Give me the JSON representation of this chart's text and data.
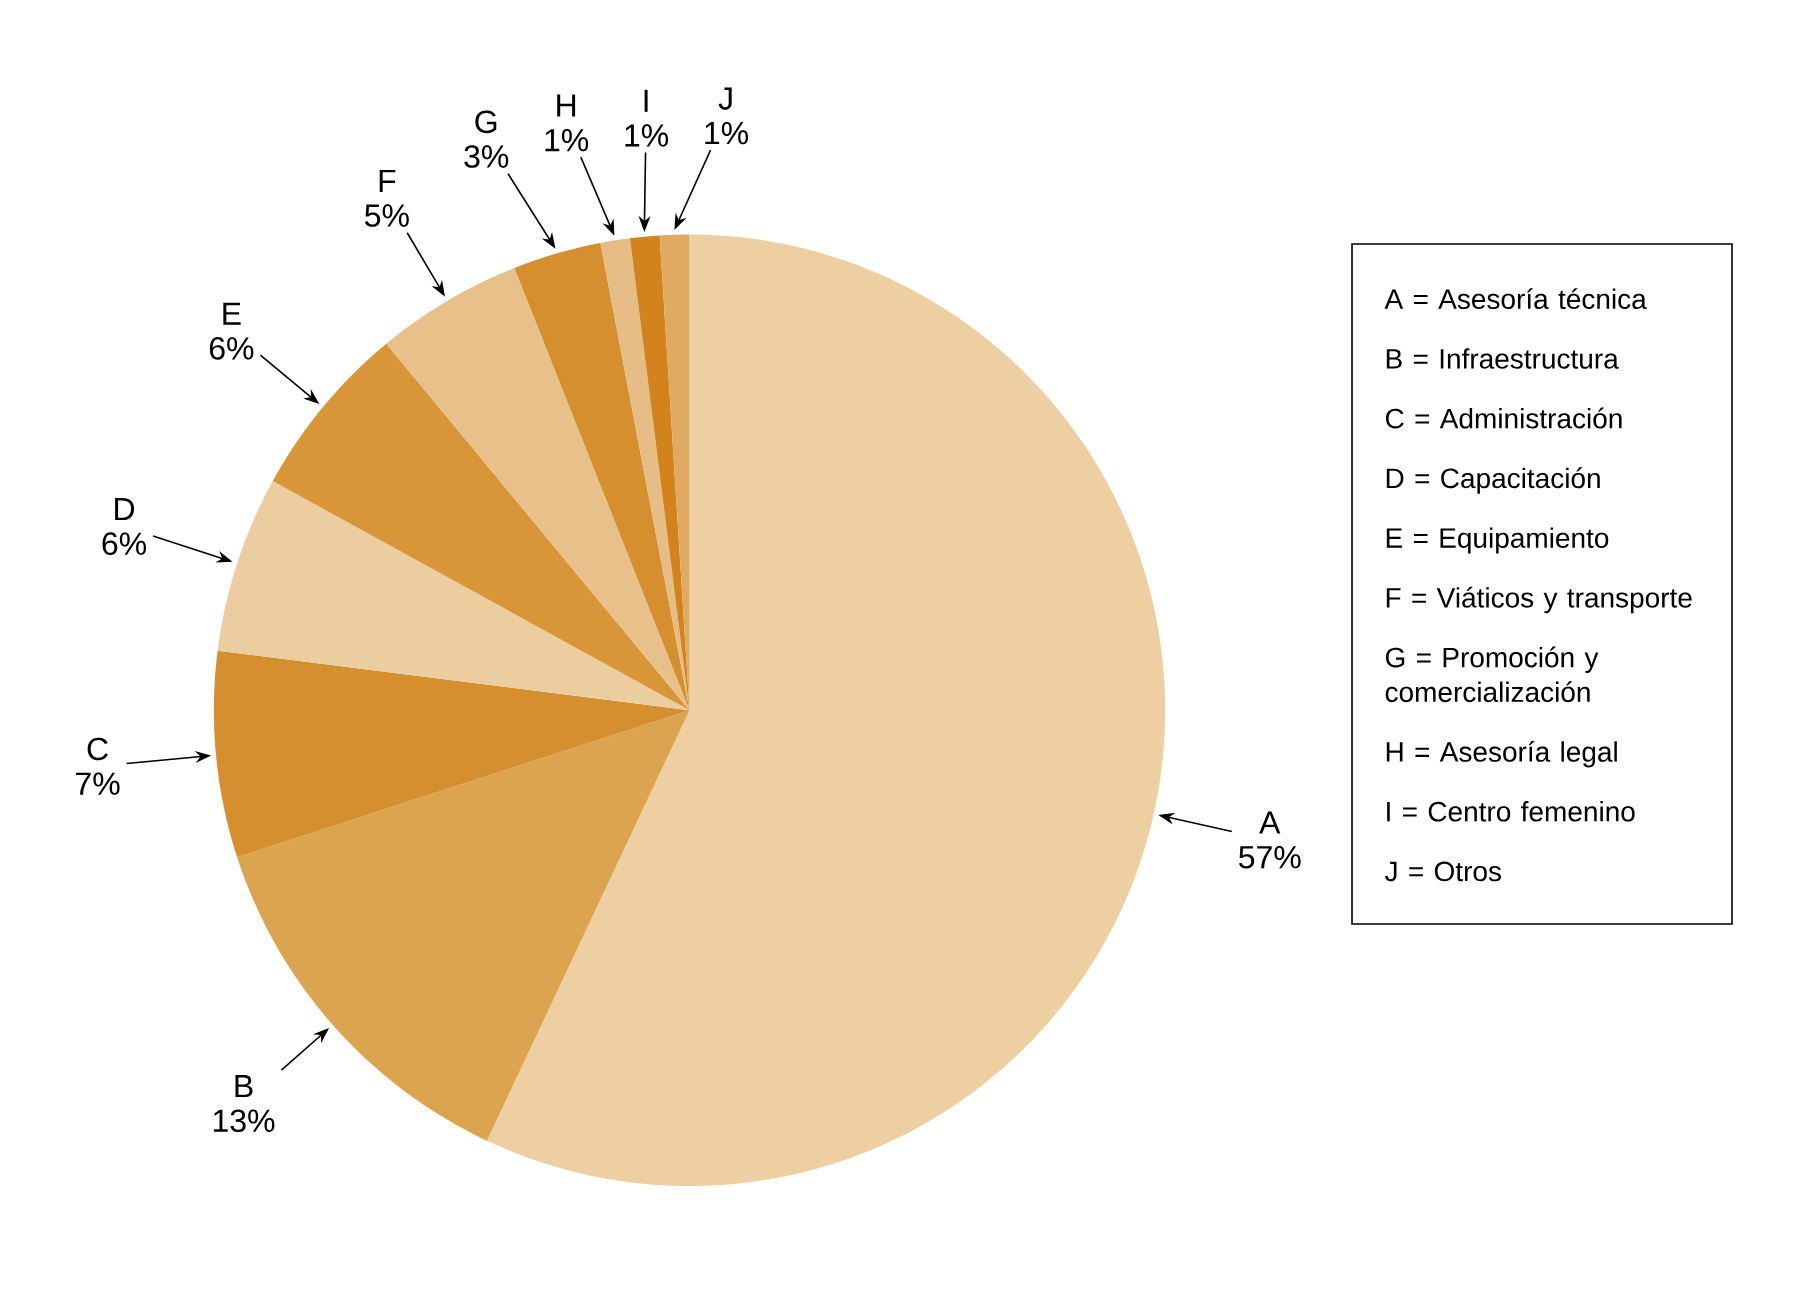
{
  "chart_data": {
    "type": "pie",
    "categories": [
      "A",
      "B",
      "C",
      "D",
      "E",
      "F",
      "G",
      "H",
      "I",
      "J"
    ],
    "values": [
      57,
      13,
      7,
      6,
      6,
      5,
      3,
      1,
      1,
      1
    ],
    "value_labels": [
      "57%",
      "13%",
      "7%",
      "6%",
      "6%",
      "5%",
      "3%",
      "1%",
      "1%",
      "1%"
    ],
    "colors": [
      "#edcfa2",
      "#dda450",
      "#d58f2e",
      "#eccda0",
      "#d99638",
      "#e8c08a",
      "#d58f2e",
      "#e6bd86",
      "#d2831c",
      "#e0aa62"
    ],
    "annotations": [
      "A = Asesoría técnica",
      "B = Infraestructura",
      "C = Administración",
      "D = Capacitación",
      "E = Equipamiento",
      "F = Viáticos y transporte",
      "G = Promoción y comercialización",
      "H = Asesoría legal",
      "I = Centro femenino",
      "J = Otros"
    ]
  }
}
